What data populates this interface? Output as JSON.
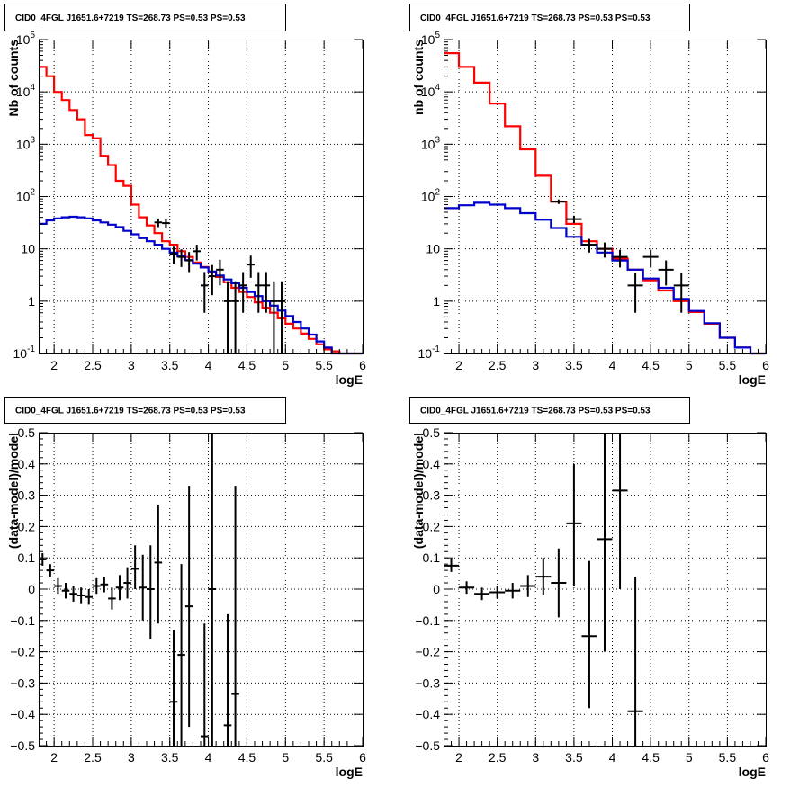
{
  "chart_data": [
    {
      "id": "tl",
      "type": "step-histogram-with-errorbars",
      "title": "CID0_4FGL J1651.6+7219 TS=268.73 PS=0.53 PS=0.53",
      "xlabel": "logE",
      "ylabel": "Nb of counts",
      "log_y": true,
      "xlim": [
        1.8,
        6.0
      ],
      "ylim": [
        0.1,
        100000
      ],
      "grid": true,
      "x_ticks": [
        2,
        2.5,
        3,
        3.5,
        4,
        4.5,
        5,
        5.5,
        6
      ],
      "x_tick_labels": [
        "2",
        "2.5",
        "3",
        "3.5",
        "4",
        "4.5",
        "5",
        "5.5",
        "6"
      ],
      "y_ticks": [
        0.1,
        1,
        10,
        100,
        1000,
        10000,
        100000
      ],
      "y_tick_labels": [
        {
          "base": "10",
          "exp": "-1"
        },
        {
          "base": "1",
          "exp": ""
        },
        {
          "base": "10",
          "exp": ""
        },
        {
          "base": "10",
          "exp": "2"
        },
        {
          "base": "10",
          "exp": "3"
        },
        {
          "base": "10",
          "exp": "4"
        },
        {
          "base": "10",
          "exp": "5"
        }
      ],
      "series": [
        {
          "kind": "step",
          "color": "#ff0000",
          "bin_edges": [
            1.8,
            1.9,
            2.0,
            2.1,
            2.2,
            2.3,
            2.4,
            2.5,
            2.6,
            2.7,
            2.8,
            2.9,
            3.0,
            3.1,
            3.2,
            3.3,
            3.4,
            3.5,
            3.6,
            3.7,
            3.8,
            3.9,
            4.0,
            4.1,
            4.2,
            4.3,
            4.4,
            4.5,
            4.6,
            4.7,
            4.8,
            4.9,
            5.0,
            5.1,
            5.2,
            5.3,
            5.4,
            5.5,
            5.6,
            5.7,
            5.8,
            5.9,
            6.0
          ],
          "values": [
            30000,
            20000,
            10000,
            7000,
            4500,
            3000,
            1500,
            1300,
            600,
            400,
            200,
            160,
            70,
            40,
            28,
            20,
            14,
            12,
            9,
            7,
            5.5,
            4.5,
            3.6,
            2.9,
            2.3,
            1.8,
            1.5,
            1.2,
            0.95,
            0.75,
            0.6,
            0.47,
            0.37,
            0.3,
            0.24,
            0.19,
            0.15,
            0.12,
            0.11,
            0.1,
            0.1,
            0.1
          ]
        },
        {
          "kind": "step",
          "color": "#0000cc",
          "bin_edges": [
            1.8,
            1.9,
            2.0,
            2.1,
            2.2,
            2.3,
            2.4,
            2.5,
            2.6,
            2.7,
            2.8,
            2.9,
            3.0,
            3.1,
            3.2,
            3.3,
            3.4,
            3.5,
            3.6,
            3.7,
            3.8,
            3.9,
            4.0,
            4.1,
            4.2,
            4.3,
            4.4,
            4.5,
            4.6,
            4.7,
            4.8,
            4.9,
            5.0,
            5.1,
            5.2,
            5.3,
            5.4,
            5.5,
            5.6,
            5.7,
            5.8,
            5.9,
            6.0
          ],
          "values": [
            30,
            35,
            38,
            40,
            41,
            40,
            38,
            35,
            32,
            29,
            26,
            22,
            19,
            16,
            14,
            12,
            10,
            8.5,
            7.2,
            6.1,
            5.2,
            4.4,
            3.7,
            3.1,
            2.6,
            2.2,
            1.8,
            1.5,
            1.25,
            1.0,
            0.82,
            0.66,
            0.52,
            0.4,
            0.3,
            0.23,
            0.17,
            0.13,
            0.1,
            0.1,
            0.1,
            0.1
          ]
        },
        {
          "kind": "errorbar",
          "color": "#000000",
          "half_width": 0.05,
          "points": [
            {
              "x": 3.35,
              "y": 32,
              "ylo": 26,
              "yhi": 38
            },
            {
              "x": 3.45,
              "y": 31,
              "ylo": 25,
              "yhi": 37
            },
            {
              "x": 3.55,
              "y": 8,
              "ylo": 5.2,
              "yhi": 11
            },
            {
              "x": 3.65,
              "y": 7,
              "ylo": 4.5,
              "yhi": 9.8
            },
            {
              "x": 3.75,
              "y": 6,
              "ylo": 3.6,
              "yhi": 8.7
            },
            {
              "x": 3.85,
              "y": 9,
              "ylo": 6,
              "yhi": 12
            },
            {
              "x": 3.95,
              "y": 2,
              "ylo": 0.6,
              "yhi": 3.6
            },
            {
              "x": 4.05,
              "y": 3,
              "ylo": 1.3,
              "yhi": 4.9
            },
            {
              "x": 4.15,
              "y": 4,
              "ylo": 2,
              "yhi": 6.2
            },
            {
              "x": 4.25,
              "y": 1,
              "ylo": 0.1,
              "yhi": 2.4
            },
            {
              "x": 4.35,
              "y": 1,
              "ylo": 0.1,
              "yhi": 2.4
            },
            {
              "x": 4.45,
              "y": 2,
              "ylo": 0.6,
              "yhi": 3.6
            },
            {
              "x": 4.55,
              "y": 5,
              "ylo": 2.8,
              "yhi": 7.4
            },
            {
              "x": 4.65,
              "y": 2,
              "ylo": 0.6,
              "yhi": 3.6
            },
            {
              "x": 4.75,
              "y": 2,
              "ylo": 0.6,
              "yhi": 3.6
            },
            {
              "x": 4.85,
              "y": 1,
              "ylo": 0.1,
              "yhi": 2.4
            },
            {
              "x": 4.95,
              "y": 1,
              "ylo": 0.1,
              "yhi": 2.4
            }
          ]
        }
      ]
    },
    {
      "id": "tr",
      "type": "step-histogram-with-errorbars",
      "title": "CID0_4FGL J1651.6+7219 TS=268.73 PS=0.53 PS=0.53",
      "xlabel": "logE",
      "ylabel": "nb of counts",
      "log_y": true,
      "xlim": [
        1.8,
        6.0
      ],
      "ylim": [
        0.1,
        100000
      ],
      "grid": true,
      "x_ticks": [
        2,
        2.5,
        3,
        3.5,
        4,
        4.5,
        5,
        5.5,
        6
      ],
      "x_tick_labels": [
        "2",
        "2.5",
        "3",
        "3.5",
        "4",
        "4.5",
        "5",
        "5.5",
        "6"
      ],
      "y_ticks": [
        0.1,
        1,
        10,
        100,
        1000,
        10000,
        100000
      ],
      "y_tick_labels": [
        {
          "base": "10",
          "exp": "-1"
        },
        {
          "base": "1",
          "exp": ""
        },
        {
          "base": "10",
          "exp": ""
        },
        {
          "base": "10",
          "exp": "2"
        },
        {
          "base": "10",
          "exp": "3"
        },
        {
          "base": "10",
          "exp": "4"
        },
        {
          "base": "10",
          "exp": "5"
        }
      ],
      "series": [
        {
          "kind": "step",
          "color": "#ff0000",
          "bin_edges": [
            1.8,
            2.0,
            2.2,
            2.4,
            2.6,
            2.8,
            3.0,
            3.2,
            3.4,
            3.6,
            3.8,
            4.0,
            4.2,
            4.4,
            4.6,
            4.8,
            5.0,
            5.2,
            5.4,
            5.6,
            5.8,
            6.0
          ],
          "values": [
            55000,
            30000,
            15000,
            6000,
            2200,
            800,
            250,
            80,
            30,
            14,
            10,
            6.5,
            4,
            2.5,
            1.6,
            1,
            0.62,
            0.37,
            0.2,
            0.13,
            0.1
          ]
        },
        {
          "kind": "step",
          "color": "#0000cc",
          "bin_edges": [
            1.8,
            2.0,
            2.2,
            2.4,
            2.6,
            2.8,
            3.0,
            3.2,
            3.4,
            3.6,
            3.8,
            4.0,
            4.2,
            4.4,
            4.6,
            4.8,
            5.0,
            5.2,
            5.4,
            5.6,
            5.8,
            6.0
          ],
          "values": [
            60,
            68,
            76,
            70,
            60,
            48,
            36,
            25,
            17,
            12,
            8.5,
            6,
            4,
            2.7,
            1.8,
            1.1,
            0.65,
            0.38,
            0.2,
            0.13,
            0.1
          ]
        },
        {
          "kind": "errorbar",
          "color": "#000000",
          "half_width": 0.1,
          "points": [
            {
              "x": 3.3,
              "y": 80,
              "ylo": 72,
              "yhi": 88
            },
            {
              "x": 3.5,
              "y": 37,
              "ylo": 31,
              "yhi": 43
            },
            {
              "x": 3.7,
              "y": 12,
              "ylo": 8.5,
              "yhi": 15.5
            },
            {
              "x": 3.9,
              "y": 10,
              "ylo": 6.8,
              "yhi": 13.2
            },
            {
              "x": 4.1,
              "y": 7,
              "ylo": 4.4,
              "yhi": 9.6
            },
            {
              "x": 4.3,
              "y": 2,
              "ylo": 0.6,
              "yhi": 3.4
            },
            {
              "x": 4.5,
              "y": 7,
              "ylo": 4.4,
              "yhi": 9.6
            },
            {
              "x": 4.7,
              "y": 4,
              "ylo": 2,
              "yhi": 6
            },
            {
              "x": 4.9,
              "y": 2,
              "ylo": 0.6,
              "yhi": 3.4
            }
          ]
        }
      ]
    },
    {
      "id": "bl",
      "type": "residual-errorbars",
      "title": "CID0_4FGL J1651.6+7219 TS=268.73 PS=0.53 PS=0.53",
      "xlabel": "logE",
      "ylabel": "(data-model)/model",
      "log_y": false,
      "xlim": [
        1.8,
        6.0
      ],
      "ylim": [
        -0.5,
        0.5
      ],
      "grid": true,
      "x_ticks": [
        2,
        2.5,
        3,
        3.5,
        4,
        4.5,
        5,
        5.5,
        6
      ],
      "x_tick_labels": [
        "2",
        "2.5",
        "3",
        "3.5",
        "4",
        "4.5",
        "5",
        "5.5",
        "6"
      ],
      "y_ticks": [
        -0.5,
        -0.4,
        -0.3,
        -0.2,
        -0.1,
        0,
        0.1,
        0.2,
        0.3,
        0.4,
        0.5
      ],
      "y_tick_labels": [
        "−0.5",
        "−0.4",
        "−0.3",
        "−0.2",
        "−0.1",
        "0",
        "0.1",
        "0.2",
        "0.3",
        "0.4",
        "0.5"
      ],
      "series": [
        {
          "kind": "errorbar",
          "color": "#000000",
          "half_width": 0.05,
          "points": [
            {
              "x": 1.85,
              "y": 0.095,
              "ylo": 0.075,
              "yhi": 0.115
            },
            {
              "x": 1.95,
              "y": 0.06,
              "ylo": 0.04,
              "yhi": 0.08
            },
            {
              "x": 2.05,
              "y": 0.01,
              "ylo": -0.015,
              "yhi": 0.035
            },
            {
              "x": 2.15,
              "y": -0.005,
              "ylo": -0.03,
              "yhi": 0.02
            },
            {
              "x": 2.25,
              "y": -0.015,
              "ylo": -0.04,
              "yhi": 0.01
            },
            {
              "x": 2.35,
              "y": -0.02,
              "ylo": -0.045,
              "yhi": 0.005
            },
            {
              "x": 2.45,
              "y": -0.025,
              "ylo": -0.05,
              "yhi": 0.0
            },
            {
              "x": 2.55,
              "y": 0.01,
              "ylo": -0.015,
              "yhi": 0.035
            },
            {
              "x": 2.65,
              "y": 0.015,
              "ylo": -0.01,
              "yhi": 0.04
            },
            {
              "x": 2.75,
              "y": -0.03,
              "ylo": -0.065,
              "yhi": 0.005
            },
            {
              "x": 2.85,
              "y": 0.005,
              "ylo": -0.035,
              "yhi": 0.045
            },
            {
              "x": 2.95,
              "y": 0.02,
              "ylo": -0.03,
              "yhi": 0.07
            },
            {
              "x": 3.05,
              "y": 0.065,
              "ylo": 0.0,
              "yhi": 0.14
            },
            {
              "x": 3.15,
              "y": 0.005,
              "ylo": -0.1,
              "yhi": 0.11
            },
            {
              "x": 3.25,
              "y": 0.0,
              "ylo": -0.16,
              "yhi": 0.14
            },
            {
              "x": 3.35,
              "y": 0.085,
              "ylo": -0.11,
              "yhi": 0.27
            },
            {
              "x": 3.55,
              "y": -0.36,
              "ylo": -0.5,
              "yhi": -0.13
            },
            {
              "x": 3.65,
              "y": -0.21,
              "ylo": -0.5,
              "yhi": 0.08
            },
            {
              "x": 3.75,
              "y": -0.055,
              "ylo": -0.44,
              "yhi": 0.33
            },
            {
              "x": 3.95,
              "y": -0.47,
              "ylo": -0.5,
              "yhi": -0.11
            },
            {
              "x": 4.05,
              "y": 0.0,
              "ylo": -0.5,
              "yhi": 0.5
            },
            {
              "x": 4.25,
              "y": -0.435,
              "ylo": -0.5,
              "yhi": -0.08
            },
            {
              "x": 4.35,
              "y": -0.335,
              "ylo": -0.5,
              "yhi": 0.33
            }
          ]
        }
      ]
    },
    {
      "id": "br",
      "type": "residual-errorbars",
      "title": "CID0_4FGL J1651.6+7219 TS=268.73 PS=0.53 PS=0.53",
      "xlabel": "logE",
      "ylabel": "(data-model)/model",
      "log_y": false,
      "xlim": [
        1.8,
        6.0
      ],
      "ylim": [
        -0.5,
        0.5
      ],
      "grid": true,
      "x_ticks": [
        2,
        2.5,
        3,
        3.5,
        4,
        4.5,
        5,
        5.5,
        6
      ],
      "x_tick_labels": [
        "2",
        "2.5",
        "3",
        "3.5",
        "4",
        "4.5",
        "5",
        "5.5",
        "6"
      ],
      "y_ticks": [
        -0.5,
        -0.4,
        -0.3,
        -0.2,
        -0.1,
        0,
        0.1,
        0.2,
        0.3,
        0.4,
        0.5
      ],
      "y_tick_labels": [
        "−0.5",
        "−0.4",
        "−0.3",
        "−0.2",
        "−0.1",
        "0",
        "0.1",
        "0.2",
        "0.3",
        "0.4",
        "0.5"
      ],
      "series": [
        {
          "kind": "errorbar",
          "color": "#000000",
          "half_width": 0.1,
          "points": [
            {
              "x": 1.9,
              "y": 0.075,
              "ylo": 0.055,
              "yhi": 0.095
            },
            {
              "x": 2.1,
              "y": 0.005,
              "ylo": -0.015,
              "yhi": 0.025
            },
            {
              "x": 2.3,
              "y": -0.015,
              "ylo": -0.035,
              "yhi": 0.005
            },
            {
              "x": 2.5,
              "y": -0.01,
              "ylo": -0.03,
              "yhi": 0.01
            },
            {
              "x": 2.7,
              "y": -0.005,
              "ylo": -0.03,
              "yhi": 0.02
            },
            {
              "x": 2.9,
              "y": 0.01,
              "ylo": -0.025,
              "yhi": 0.045
            },
            {
              "x": 3.1,
              "y": 0.04,
              "ylo": -0.02,
              "yhi": 0.1
            },
            {
              "x": 3.3,
              "y": 0.02,
              "ylo": -0.09,
              "yhi": 0.13
            },
            {
              "x": 3.5,
              "y": 0.21,
              "ylo": 0.01,
              "yhi": 0.4
            },
            {
              "x": 3.7,
              "y": -0.15,
              "ylo": -0.38,
              "yhi": 0.09
            },
            {
              "x": 3.9,
              "y": 0.16,
              "ylo": -0.2,
              "yhi": 0.5
            },
            {
              "x": 4.1,
              "y": 0.315,
              "ylo": 0.0,
              "yhi": 0.5
            },
            {
              "x": 4.3,
              "y": -0.39,
              "ylo": -0.5,
              "yhi": 0.04
            }
          ]
        }
      ]
    }
  ]
}
